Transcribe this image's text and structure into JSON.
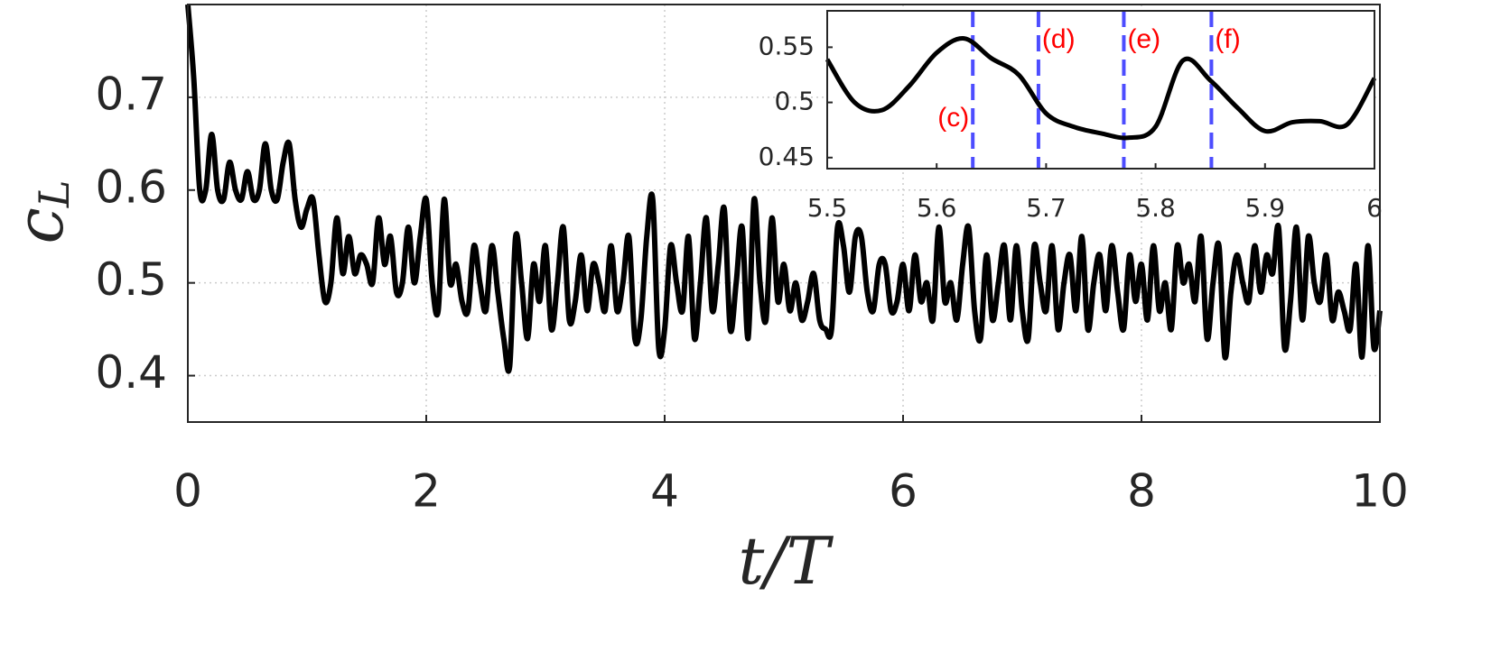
{
  "chart_data": [
    {
      "type": "line",
      "xlabel": "t/T",
      "ylabel": {
        "base": "c",
        "sub": "L"
      },
      "xlim": [
        0,
        10
      ],
      "ylim": [
        0.35,
        0.8
      ],
      "xticks": [
        0,
        2,
        4,
        6,
        8,
        10
      ],
      "yticks": [
        0.4,
        0.5,
        0.6,
        0.7
      ],
      "grid": true,
      "x": [
        0,
        0.05,
        0.1,
        0.15,
        0.2,
        0.25,
        0.3,
        0.35,
        0.4,
        0.45,
        0.5,
        0.55,
        0.6,
        0.65,
        0.7,
        0.75,
        0.8,
        0.85,
        0.9,
        0.95,
        1,
        1.05,
        1.1,
        1.15,
        1.2,
        1.25,
        1.3,
        1.35,
        1.4,
        1.45,
        1.5,
        1.55,
        1.6,
        1.65,
        1.7,
        1.75,
        1.8,
        1.85,
        1.9,
        1.95,
        2,
        2.05,
        2.1,
        2.15,
        2.2,
        2.25,
        2.3,
        2.35,
        2.4,
        2.45,
        2.5,
        2.55,
        2.6,
        2.65,
        2.7,
        2.75,
        2.8,
        2.85,
        2.9,
        2.95,
        3,
        3.05,
        3.1,
        3.15,
        3.2,
        3.25,
        3.3,
        3.35,
        3.4,
        3.45,
        3.5,
        3.55,
        3.6,
        3.65,
        3.7,
        3.75,
        3.8,
        3.85,
        3.9,
        3.95,
        4,
        4.05,
        4.1,
        4.15,
        4.2,
        4.25,
        4.3,
        4.35,
        4.4,
        4.45,
        4.5,
        4.55,
        4.6,
        4.65,
        4.7,
        4.75,
        4.8,
        4.85,
        4.9,
        4.95,
        5,
        5.05,
        5.1,
        5.15,
        5.2,
        5.25,
        5.3,
        5.35,
        5.4,
        5.45,
        5.5,
        5.55,
        5.6,
        5.65,
        5.7,
        5.75,
        5.8,
        5.85,
        5.9,
        5.95,
        6,
        6.05,
        6.1,
        6.15,
        6.2,
        6.25,
        6.3,
        6.35,
        6.4,
        6.45,
        6.5,
        6.55,
        6.6,
        6.65,
        6.7,
        6.75,
        6.8,
        6.85,
        6.9,
        6.95,
        7,
        7.05,
        7.1,
        7.15,
        7.2,
        7.25,
        7.3,
        7.35,
        7.4,
        7.45,
        7.5,
        7.55,
        7.6,
        7.65,
        7.7,
        7.75,
        7.8,
        7.85,
        7.9,
        7.95,
        8,
        8.05,
        8.1,
        8.15,
        8.2,
        8.25,
        8.3,
        8.35,
        8.4,
        8.45,
        8.5,
        8.55,
        8.6,
        8.65,
        8.7,
        8.75,
        8.8,
        8.85,
        8.9,
        8.95,
        9,
        9.05,
        9.1,
        9.15,
        9.2,
        9.25,
        9.3,
        9.35,
        9.4,
        9.45,
        9.5,
        9.55,
        9.6,
        9.65,
        9.7,
        9.75,
        9.8,
        9.85,
        9.9,
        9.95,
        10
      ],
      "series": [
        {
          "color": "#000000",
          "values": [
            0.8,
            0.72,
            0.6,
            0.6,
            0.66,
            0.6,
            0.59,
            0.63,
            0.6,
            0.59,
            0.62,
            0.59,
            0.6,
            0.65,
            0.6,
            0.59,
            0.63,
            0.65,
            0.59,
            0.56,
            0.58,
            0.59,
            0.53,
            0.48,
            0.5,
            0.57,
            0.51,
            0.55,
            0.51,
            0.53,
            0.52,
            0.5,
            0.57,
            0.52,
            0.55,
            0.49,
            0.5,
            0.56,
            0.5,
            0.55,
            0.59,
            0.5,
            0.47,
            0.59,
            0.5,
            0.52,
            0.48,
            0.47,
            0.54,
            0.5,
            0.47,
            0.54,
            0.49,
            0.44,
            0.41,
            0.55,
            0.5,
            0.44,
            0.52,
            0.48,
            0.54,
            0.45,
            0.5,
            0.56,
            0.46,
            0.48,
            0.53,
            0.47,
            0.52,
            0.5,
            0.47,
            0.54,
            0.47,
            0.5,
            0.55,
            0.44,
            0.46,
            0.55,
            0.59,
            0.43,
            0.45,
            0.54,
            0.5,
            0.47,
            0.55,
            0.44,
            0.5,
            0.57,
            0.47,
            0.52,
            0.58,
            0.45,
            0.5,
            0.56,
            0.44,
            0.59,
            0.5,
            0.46,
            0.57,
            0.48,
            0.52,
            0.47,
            0.5,
            0.46,
            0.48,
            0.51,
            0.46,
            0.45,
            0.45,
            0.56,
            0.54,
            0.49,
            0.55,
            0.55,
            0.49,
            0.47,
            0.52,
            0.52,
            0.47,
            0.48,
            0.52,
            0.47,
            0.53,
            0.48,
            0.5,
            0.46,
            0.56,
            0.48,
            0.5,
            0.46,
            0.52,
            0.56,
            0.47,
            0.44,
            0.53,
            0.46,
            0.5,
            0.54,
            0.46,
            0.54,
            0.47,
            0.44,
            0.54,
            0.5,
            0.47,
            0.54,
            0.45,
            0.5,
            0.53,
            0.47,
            0.55,
            0.45,
            0.5,
            0.53,
            0.47,
            0.54,
            0.49,
            0.45,
            0.53,
            0.48,
            0.52,
            0.46,
            0.54,
            0.47,
            0.5,
            0.45,
            0.54,
            0.5,
            0.52,
            0.48,
            0.55,
            0.44,
            0.5,
            0.54,
            0.42,
            0.49,
            0.53,
            0.5,
            0.48,
            0.54,
            0.49,
            0.53,
            0.51,
            0.56,
            0.43,
            0.48,
            0.56,
            0.46,
            0.55,
            0.5,
            0.48,
            0.53,
            0.46,
            0.49,
            0.47,
            0.45,
            0.52,
            0.42,
            0.54,
            0.43,
            0.47
          ]
        }
      ]
    },
    {
      "type": "line",
      "xlim": [
        5.5,
        6
      ],
      "ylim": [
        0.44,
        0.583
      ],
      "xticks": [
        5.5,
        5.6,
        5.7,
        5.8,
        5.9,
        6
      ],
      "yticks": [
        0.45,
        0.5,
        0.55
      ],
      "x": [
        5.5,
        5.525,
        5.55,
        5.575,
        5.6,
        5.625,
        5.65,
        5.675,
        5.7,
        5.725,
        5.75,
        5.775,
        5.8,
        5.825,
        5.85,
        5.875,
        5.9,
        5.925,
        5.95,
        5.975,
        6
      ],
      "series": [
        {
          "color": "#000000",
          "values": [
            0.539,
            0.5,
            0.493,
            0.515,
            0.545,
            0.558,
            0.54,
            0.525,
            0.49,
            0.478,
            0.472,
            0.468,
            0.478,
            0.538,
            0.52,
            0.495,
            0.474,
            0.482,
            0.483,
            0.48,
            0.522
          ]
        }
      ],
      "vlines": [
        {
          "x": 5.633,
          "label": "(c)"
        },
        {
          "x": 5.693,
          "label": "(d)"
        },
        {
          "x": 5.771,
          "label": "(e)"
        },
        {
          "x": 5.851,
          "label": "(f)"
        }
      ],
      "vline_color": "#4d4dff",
      "label_color": "#ff0000"
    }
  ]
}
